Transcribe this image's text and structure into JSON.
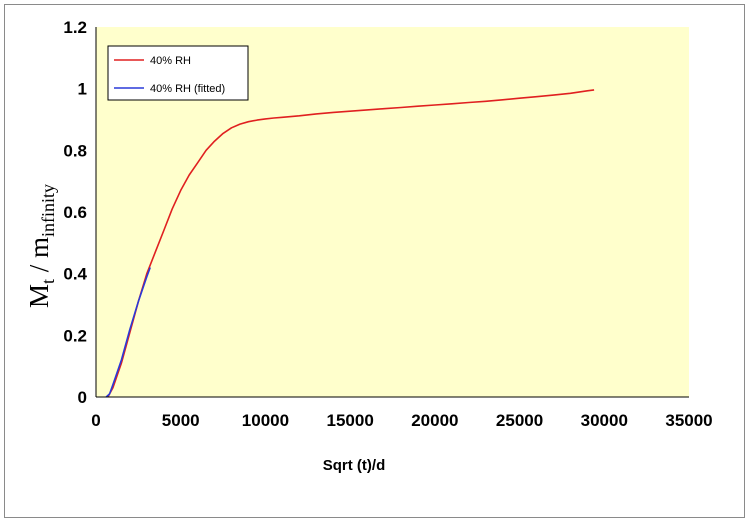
{
  "chart_data": {
    "type": "line",
    "xlabel": "Sqrt (t)/d",
    "ylabel_main": "M",
    "ylabel_sub1": "t",
    "ylabel_mid": " / m",
    "ylabel_sub2": "infinity",
    "xlim": [
      0,
      35000
    ],
    "ylim": [
      0,
      1.2
    ],
    "x_ticks": [
      "0",
      "5000",
      "10000",
      "15000",
      "20000",
      "25000",
      "30000",
      "35000"
    ],
    "y_ticks": [
      "0",
      "0.2",
      "0.4",
      "0.6",
      "0.8",
      "1",
      "1.2"
    ],
    "grid": false,
    "background_color": "#ffffcc",
    "legend_position": "top-left",
    "series": [
      {
        "name": "40% RH",
        "color": "#e02020",
        "x": [
          700,
          1000,
          1500,
          2000,
          2500,
          3000,
          3500,
          4000,
          4500,
          5000,
          5500,
          6000,
          6500,
          7000,
          7500,
          8000,
          8500,
          9000,
          9500,
          10000,
          10500,
          11000,
          12000,
          13000,
          14000,
          15000,
          16000,
          17000,
          18000,
          19000,
          20000,
          21000,
          22000,
          23000,
          24000,
          25000,
          26000,
          27000,
          28000,
          29000,
          29400
        ],
        "y": [
          0.0,
          0.03,
          0.11,
          0.21,
          0.31,
          0.4,
          0.47,
          0.54,
          0.61,
          0.67,
          0.72,
          0.76,
          0.8,
          0.83,
          0.855,
          0.873,
          0.885,
          0.893,
          0.898,
          0.902,
          0.905,
          0.907,
          0.912,
          0.918,
          0.923,
          0.927,
          0.931,
          0.935,
          0.939,
          0.943,
          0.947,
          0.951,
          0.955,
          0.959,
          0.964,
          0.969,
          0.974,
          0.979,
          0.985,
          0.993,
          0.996
        ]
      },
      {
        "name": "40% RH (fitted)",
        "color": "#2a3ad8",
        "x": [
          600,
          800,
          1000,
          1500,
          2000,
          2500,
          3000,
          3200
        ],
        "y": [
          0.0,
          0.01,
          0.04,
          0.12,
          0.22,
          0.31,
          0.39,
          0.42
        ]
      }
    ]
  }
}
